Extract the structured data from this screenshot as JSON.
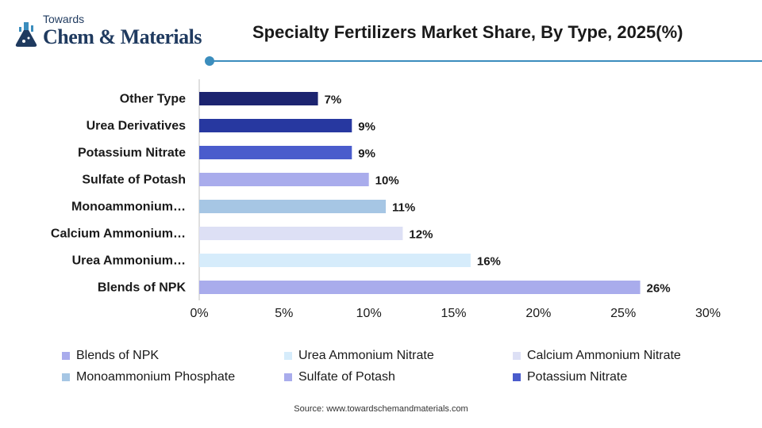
{
  "brand": {
    "line1": "Towards",
    "line2": "Chem & Materials"
  },
  "colors": {
    "accent": "#3b8dbd",
    "blends_of_npk": "#a9acec",
    "urea_ammonium_nitrate": "#d6ecfb",
    "calcium_ammonium_nitrate": "#dde0f5",
    "monoammonium_phosphate": "#a6c6e4",
    "sulfate_of_potash": "#a9acec",
    "potassium_nitrate": "#4a5ccc",
    "urea_derivatives": "#2738a0",
    "other_type": "#1c2470"
  },
  "chart_data": {
    "type": "bar",
    "orientation": "horizontal",
    "title": "Specialty Fertilizers Market Share, By Type, 2025(%)",
    "categories": [
      "Other Type",
      "Urea Derivatives",
      "Potassium Nitrate",
      "Sulfate of Potash",
      "Monoammonium…",
      "Calcium Ammonium…",
      "Urea Ammonium…",
      "Blends of NPK"
    ],
    "values": [
      7,
      9,
      9,
      10,
      11,
      12,
      16,
      26
    ],
    "data_labels": [
      "7%",
      "9%",
      "9%",
      "10%",
      "11%",
      "12%",
      "16%",
      "26%"
    ],
    "bar_colors": [
      "#1c2470",
      "#2738a0",
      "#4a5ccc",
      "#a9acec",
      "#a6c6e4",
      "#dde0f5",
      "#d6ecfb",
      "#a9acec"
    ],
    "xlim": [
      0,
      30
    ],
    "xticks": [
      0,
      5,
      10,
      15,
      20,
      25,
      30
    ],
    "xtick_labels": [
      "0%",
      "5%",
      "10%",
      "15%",
      "20%",
      "25%",
      "30%"
    ],
    "grid": false,
    "legend_position": "bottom",
    "legend": [
      {
        "label": "Blends of NPK",
        "color": "#a9acec"
      },
      {
        "label": "Urea Ammonium Nitrate",
        "color": "#d6ecfb"
      },
      {
        "label": "Calcium Ammonium Nitrate",
        "color": "#dde0f5"
      },
      {
        "label": "Monoammonium Phosphate",
        "color": "#a6c6e4"
      },
      {
        "label": "Sulfate of Potash",
        "color": "#a9acec"
      },
      {
        "label": "Potassium Nitrate",
        "color": "#4a5ccc"
      }
    ]
  },
  "source": "Source: www.towardschemandmaterials.com"
}
